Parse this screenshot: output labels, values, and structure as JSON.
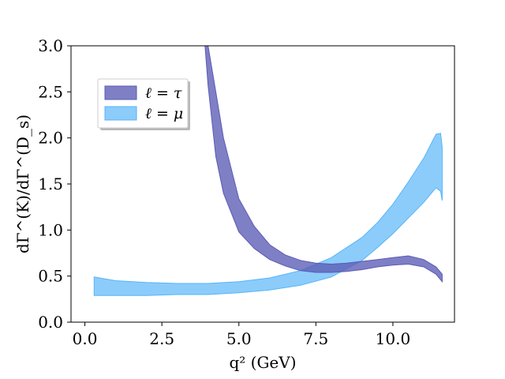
{
  "chart_data": {
    "type": "area",
    "xlabel": "q² (GeV)",
    "ylabel": "dΓ^(K)/dΓ^(D_s)",
    "xlim": [
      -0.45,
      12.0
    ],
    "ylim": [
      0.0,
      3.0
    ],
    "xticks": [
      0.0,
      2.5,
      5.0,
      7.5,
      10.0
    ],
    "xtick_labels": [
      "0.0",
      "2.5",
      "5.0",
      "7.5",
      "10.0"
    ],
    "yticks": [
      0.0,
      0.5,
      1.0,
      1.5,
      2.0,
      2.5,
      3.0
    ],
    "ytick_labels": [
      "0.0",
      "0.5",
      "1.0",
      "1.5",
      "2.0",
      "2.5",
      "3.0"
    ],
    "grid": false,
    "legend_position": "upper-left",
    "series": [
      {
        "name": "ℓ = τ",
        "color": "#5b5bb5",
        "x": [
          3.9,
          4.0,
          4.25,
          4.5,
          5.0,
          5.5,
          6.0,
          6.5,
          7.0,
          7.5,
          8.0,
          8.5,
          9.0,
          9.5,
          10.0,
          10.5,
          11.0,
          11.4,
          11.6
        ],
        "lower": [
          3.0,
          2.57,
          1.8,
          1.4,
          0.98,
          0.8,
          0.68,
          0.61,
          0.56,
          0.54,
          0.54,
          0.55,
          0.57,
          0.6,
          0.62,
          0.63,
          0.6,
          0.52,
          0.44
        ],
        "upper": [
          3.0,
          3.0,
          2.5,
          2.0,
          1.34,
          1.04,
          0.84,
          0.73,
          0.67,
          0.64,
          0.63,
          0.64,
          0.66,
          0.68,
          0.7,
          0.72,
          0.68,
          0.6,
          0.52
        ]
      },
      {
        "name": "ℓ = μ",
        "color": "#56b4f9",
        "x": [
          0.3,
          1.0,
          2.0,
          3.0,
          4.0,
          5.0,
          6.0,
          7.0,
          8.0,
          9.0,
          9.5,
          10.0,
          10.5,
          11.0,
          11.4,
          11.55,
          11.6
        ],
        "lower": [
          0.29,
          0.29,
          0.29,
          0.3,
          0.3,
          0.32,
          0.35,
          0.4,
          0.49,
          0.67,
          0.81,
          0.96,
          1.13,
          1.3,
          1.46,
          1.42,
          1.32
        ],
        "upper": [
          0.49,
          0.45,
          0.43,
          0.42,
          0.42,
          0.44,
          0.48,
          0.56,
          0.7,
          0.92,
          1.08,
          1.28,
          1.52,
          1.78,
          2.04,
          2.05,
          1.9
        ]
      }
    ]
  }
}
